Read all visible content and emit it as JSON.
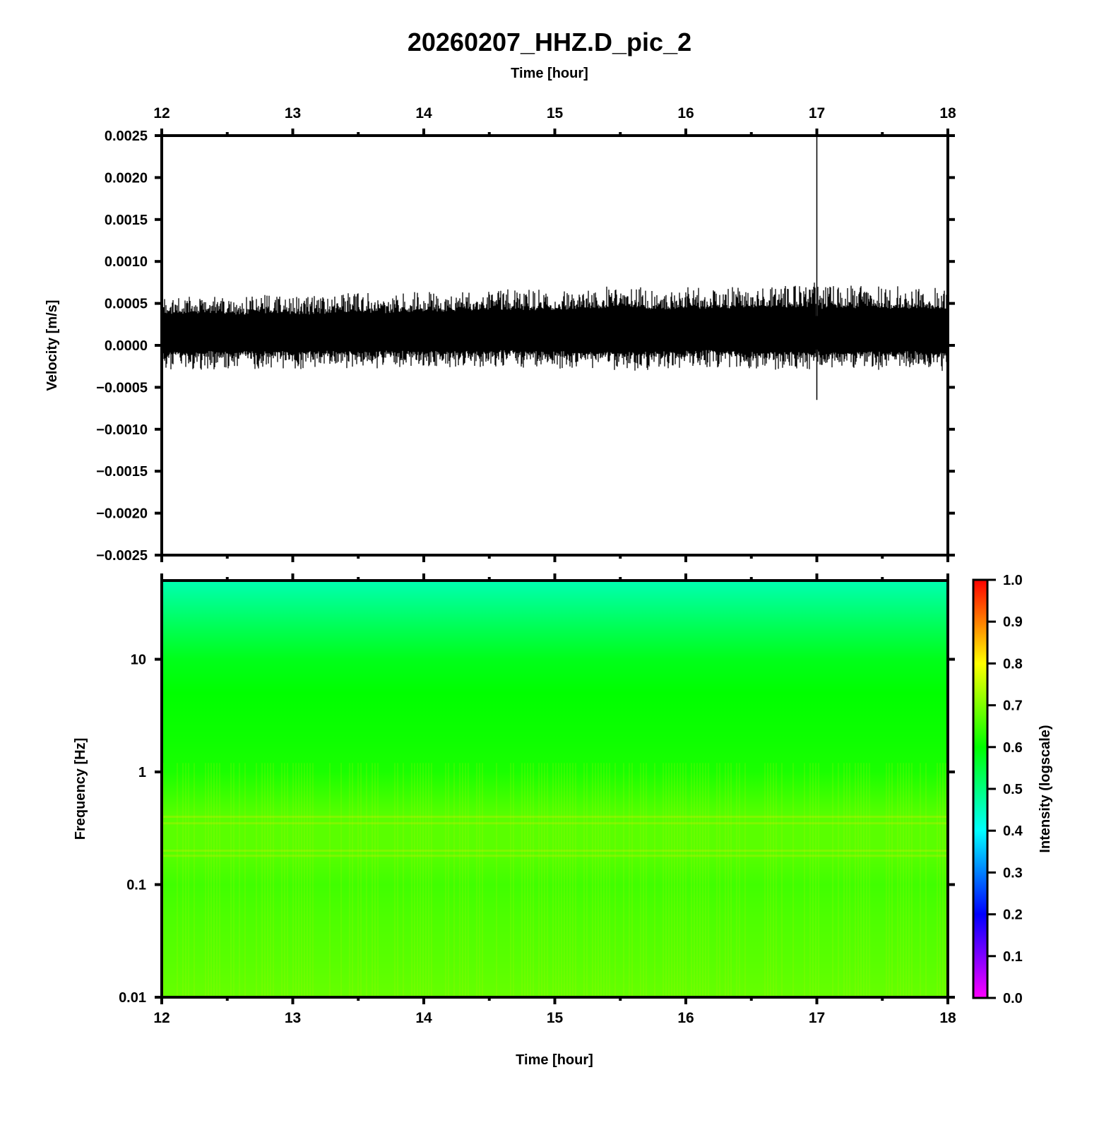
{
  "chart_data": [
    {
      "type": "line",
      "title": "20260207_HHZ.D_pic_2",
      "xlabel": "Time [hour]",
      "ylabel": "Velocity [m/s]",
      "xlim": [
        12,
        18
      ],
      "ylim": [
        -0.0025,
        0.0025
      ],
      "x_ticks": [
        "12",
        "13",
        "14",
        "15",
        "16",
        "17",
        "18"
      ],
      "y_ticks": [
        "0.0025",
        "0.0020",
        "0.0015",
        "0.0010",
        "0.0005",
        "0.0000",
        "−0.0005",
        "−0.0010",
        "−0.0015",
        "−0.0020",
        "−0.0025"
      ],
      "series": [
        {
          "x": [
            12.0,
            12.25,
            12.5,
            12.75,
            13.0,
            13.25,
            13.5,
            13.75,
            14.0,
            14.25,
            14.5,
            14.75,
            15.0,
            15.25,
            15.5,
            15.75,
            16.0,
            16.25,
            16.5,
            16.75,
            16.98,
            17.0,
            17.25,
            17.5,
            17.75,
            18.0
          ],
          "upper": [
            0.00058,
            0.0006,
            0.00056,
            0.0006,
            0.00058,
            0.00058,
            0.00062,
            0.0006,
            0.00064,
            0.00064,
            0.00068,
            0.00066,
            0.00066,
            0.00066,
            0.00072,
            0.00068,
            0.0007,
            0.0007,
            0.0007,
            0.00072,
            0.00074,
            0.0025,
            0.00072,
            0.0007,
            0.0007,
            0.00068
          ],
          "lower": [
            -0.0003,
            -0.00028,
            -0.00028,
            -0.00028,
            -0.00028,
            -0.00026,
            -0.00028,
            -0.00026,
            -0.00028,
            -0.00028,
            -0.00026,
            -0.00026,
            -0.00028,
            -0.00028,
            -0.0003,
            -0.00028,
            -0.00026,
            -0.00026,
            -0.00028,
            -0.00028,
            -0.0003,
            -0.00065,
            -0.00028,
            -0.00028,
            -0.00028,
            -0.0003
          ]
        }
      ]
    },
    {
      "type": "heatmap",
      "xlabel": "Time [hour]",
      "ylabel": "Frequency [Hz]",
      "xlim": [
        12,
        18
      ],
      "ylim": [
        0.01,
        50
      ],
      "yscale": "log",
      "x_ticks": [
        "12",
        "13",
        "14",
        "15",
        "16",
        "17",
        "18"
      ],
      "y_ticks": [
        "0.01",
        "0.1",
        "1",
        "10"
      ],
      "colorbar": {
        "label": "Intensity (logscale)",
        "range": [
          0.0,
          1.0
        ],
        "ticks": [
          "1.0",
          "0.9",
          "0.8",
          "0.7",
          "0.6",
          "0.5",
          "0.4",
          "0.3",
          "0.2",
          "0.1",
          "0.0"
        ],
        "colors": [
          "#ff00ff",
          "#0000ff",
          "#00ffff",
          "#00ff00",
          "#ffff00",
          "#ff0000"
        ]
      },
      "intensity_by_frequency": {
        "frequency_hz": [
          0.01,
          0.02,
          0.05,
          0.1,
          0.2,
          0.4,
          1,
          2,
          5,
          10,
          20,
          50
        ],
        "intensity": [
          0.68,
          0.67,
          0.66,
          0.65,
          0.67,
          0.67,
          0.62,
          0.61,
          0.6,
          0.58,
          0.53,
          0.46
        ]
      }
    }
  ]
}
